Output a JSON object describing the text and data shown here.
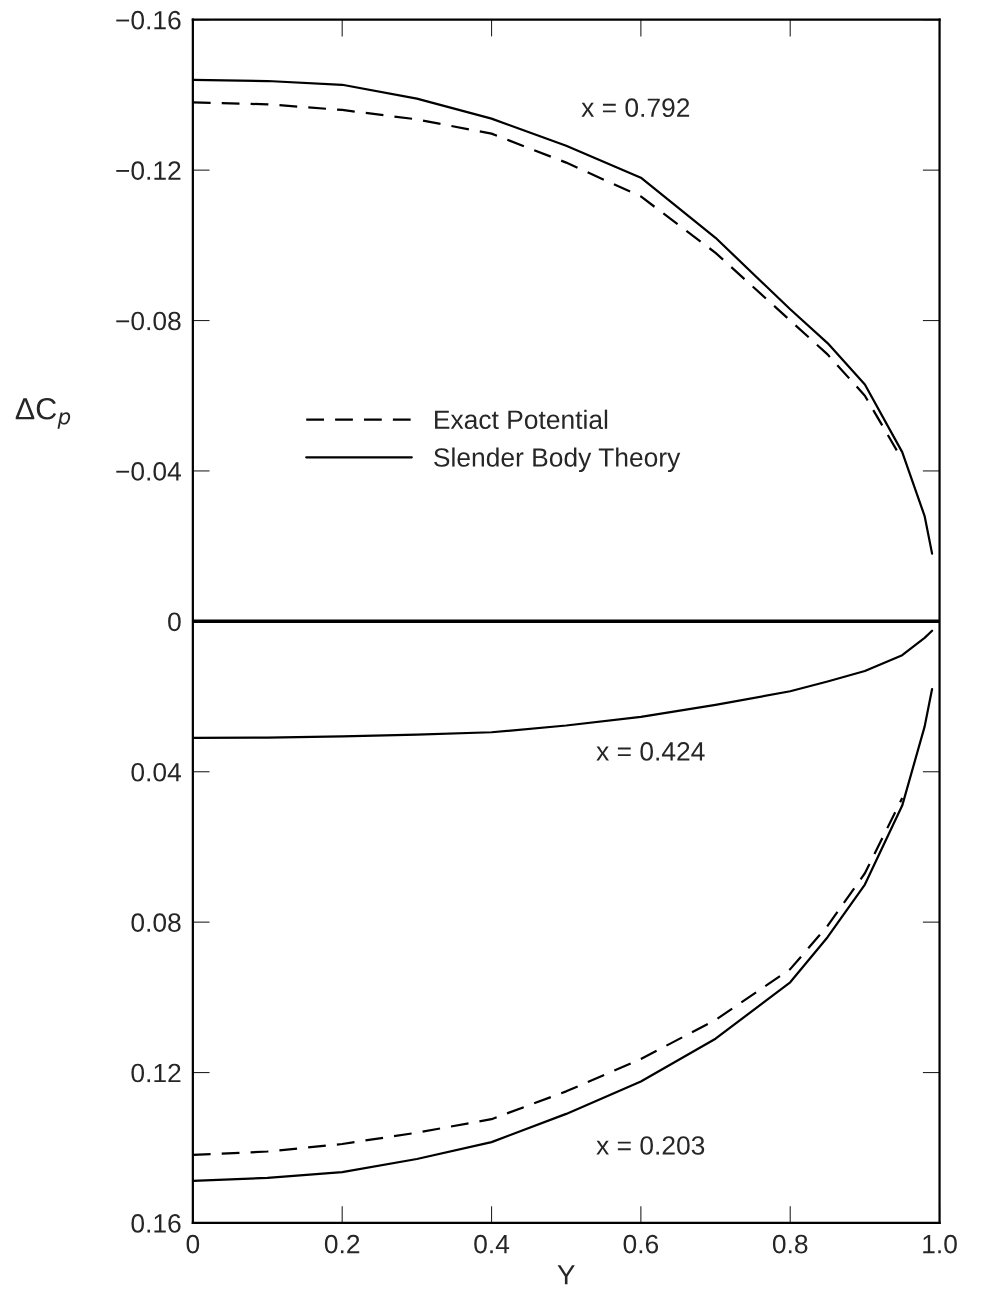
{
  "chart_data": {
    "type": "line",
    "xlabel": "Y",
    "ylabel": "ΔC$_{p}$",
    "xlim": [
      0,
      1.0
    ],
    "ylim": [
      0.16,
      -0.16
    ],
    "xticks": [
      {
        "value": 0,
        "label": "0"
      },
      0.2,
      0.4,
      0.6,
      0.8,
      {
        "value": 1.0,
        "label": "1.0"
      }
    ],
    "yticks": [
      {
        "value": -0.16,
        "label": "−0.16"
      },
      {
        "value": -0.12,
        "label": "−0.12"
      },
      {
        "value": -0.08,
        "label": "−0.08"
      },
      {
        "value": -0.04,
        "label": "−0.04"
      },
      {
        "value": 0,
        "label": "0"
      },
      0.04,
      0.08,
      0.12,
      0.16
    ],
    "grid": false,
    "legend": "center left",
    "marker": "none",
    "x": [
      0,
      0.1,
      0.2,
      0.3,
      0.4,
      0.5,
      0.6,
      0.7,
      0.8,
      0.85,
      0.9,
      0.95,
      0.98,
      0.99
    ],
    "series": [
      {
        "name": "Exact Potential",
        "color": "#000000",
        "line_style": "dashed",
        "x": [
          0,
          0.1,
          0.2,
          0.3,
          0.4,
          0.5,
          0.6,
          0.7,
          0.8,
          0.85,
          0.9,
          0.95
        ],
        "values": [
          -0.138,
          -0.1375,
          -0.136,
          -0.1335,
          -0.1297,
          -0.122,
          -0.113,
          -0.098,
          -0.08,
          -0.071,
          -0.06,
          -0.043
        ]
      },
      {
        "name": "Slender Body Theory",
        "color": "#000000",
        "line_style": "solid",
        "values": [
          -0.144,
          -0.1437,
          -0.1427,
          -0.139,
          -0.1337,
          -0.1265,
          -0.118,
          -0.102,
          -0.083,
          -0.074,
          -0.063,
          -0.045,
          -0.028,
          -0.018
        ]
      },
      {
        "color": "#000000",
        "line_style": "solid",
        "values": [
          0.031,
          0.0309,
          0.0306,
          0.0301,
          0.0295,
          0.0277,
          0.0254,
          0.0222,
          0.0186,
          0.016,
          0.0132,
          0.009,
          0.0044,
          0.0025
        ]
      },
      {
        "color": "#000000",
        "line_style": "dashed",
        "x": [
          0,
          0.1,
          0.2,
          0.3,
          0.4,
          0.5,
          0.6,
          0.7,
          0.8,
          0.85,
          0.9,
          0.95
        ],
        "values": [
          0.1419,
          0.141,
          0.139,
          0.136,
          0.1324,
          0.125,
          0.1164,
          0.106,
          0.0925,
          0.081,
          0.067,
          0.047
        ]
      },
      {
        "color": "#000000",
        "line_style": "solid",
        "values": [
          0.1488,
          0.148,
          0.1465,
          0.143,
          0.1385,
          0.131,
          0.1224,
          0.111,
          0.096,
          0.084,
          0.07,
          0.049,
          0.028,
          0.018
        ]
      }
    ],
    "ref_lines": [
      {
        "axis": "y",
        "value": 0,
        "color": "#000000",
        "line_style": "solid"
      }
    ],
    "annotations": [
      "x = 0.792",
      "x = 0.424",
      "x = 0.203"
    ]
  }
}
